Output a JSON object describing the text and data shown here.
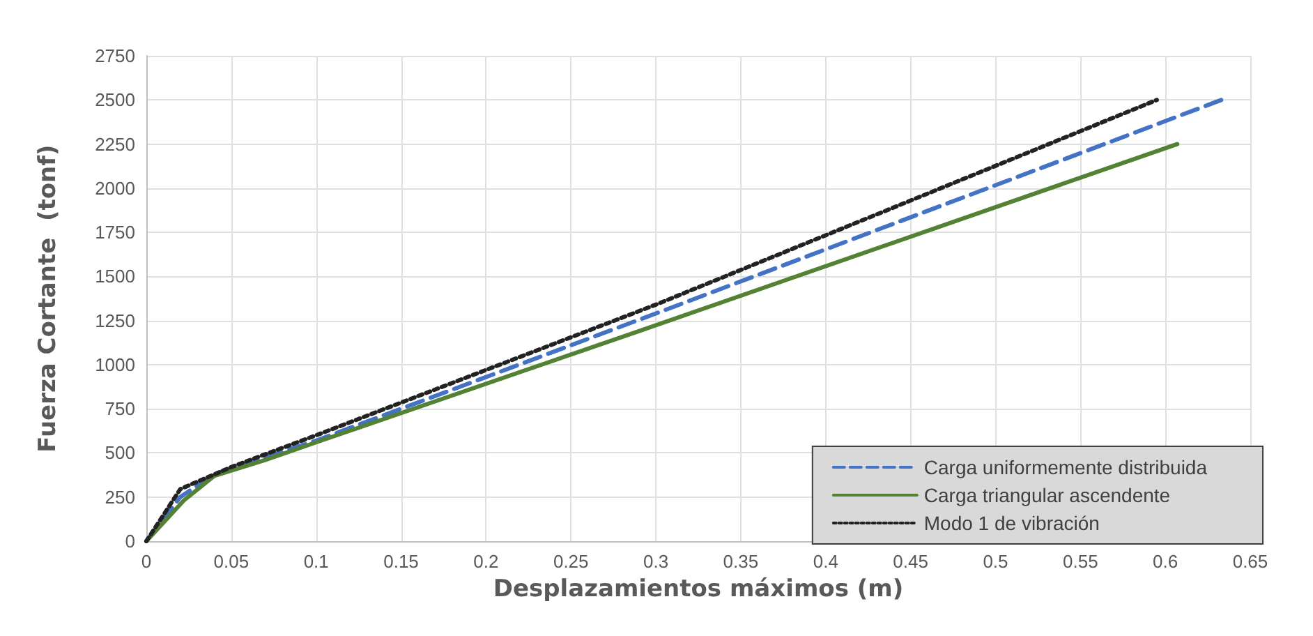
{
  "chart_data": {
    "type": "line",
    "xlabel": "Desplazamientos máximos (m)",
    "ylabel": "Fuerza Cortante  (tonf)",
    "xlim": [
      0,
      0.65
    ],
    "xticks": [
      0,
      0.05,
      0.1,
      0.15,
      0.2,
      0.25,
      0.3,
      0.35,
      0.4,
      0.45,
      0.5,
      0.55,
      0.6,
      0.65
    ],
    "ylim": [
      0,
      2750
    ],
    "yticks": [
      0,
      250,
      500,
      750,
      1000,
      1250,
      1500,
      1750,
      2000,
      2250,
      2500,
      2750
    ],
    "grid": true,
    "legend": "bottom right",
    "marker": "none",
    "series": [
      {
        "name": "Carga uniformemente distribuida",
        "color": "#4472c4",
        "line_style": "dashed",
        "x": [
          0,
          0.02,
          0.04,
          0.1,
          0.3,
          0.633
        ],
        "values": [
          0,
          250,
          380,
          570,
          1290,
          2500
        ]
      },
      {
        "name": "Carga triangular ascendente",
        "color": "#548235",
        "line_style": "solid",
        "x": [
          0,
          0.022,
          0.04,
          0.07,
          0.1,
          0.29,
          0.607
        ],
        "values": [
          0,
          230,
          370,
          460,
          560,
          1190,
          2250
        ]
      },
      {
        "name": "Modo 1 de vibración",
        "color": "#222222",
        "line_style": "dotted",
        "x": [
          0,
          0.02,
          0.05,
          0.1,
          0.3,
          0.595
        ],
        "values": [
          0,
          295,
          420,
          600,
          1340,
          2500
        ]
      }
    ]
  }
}
